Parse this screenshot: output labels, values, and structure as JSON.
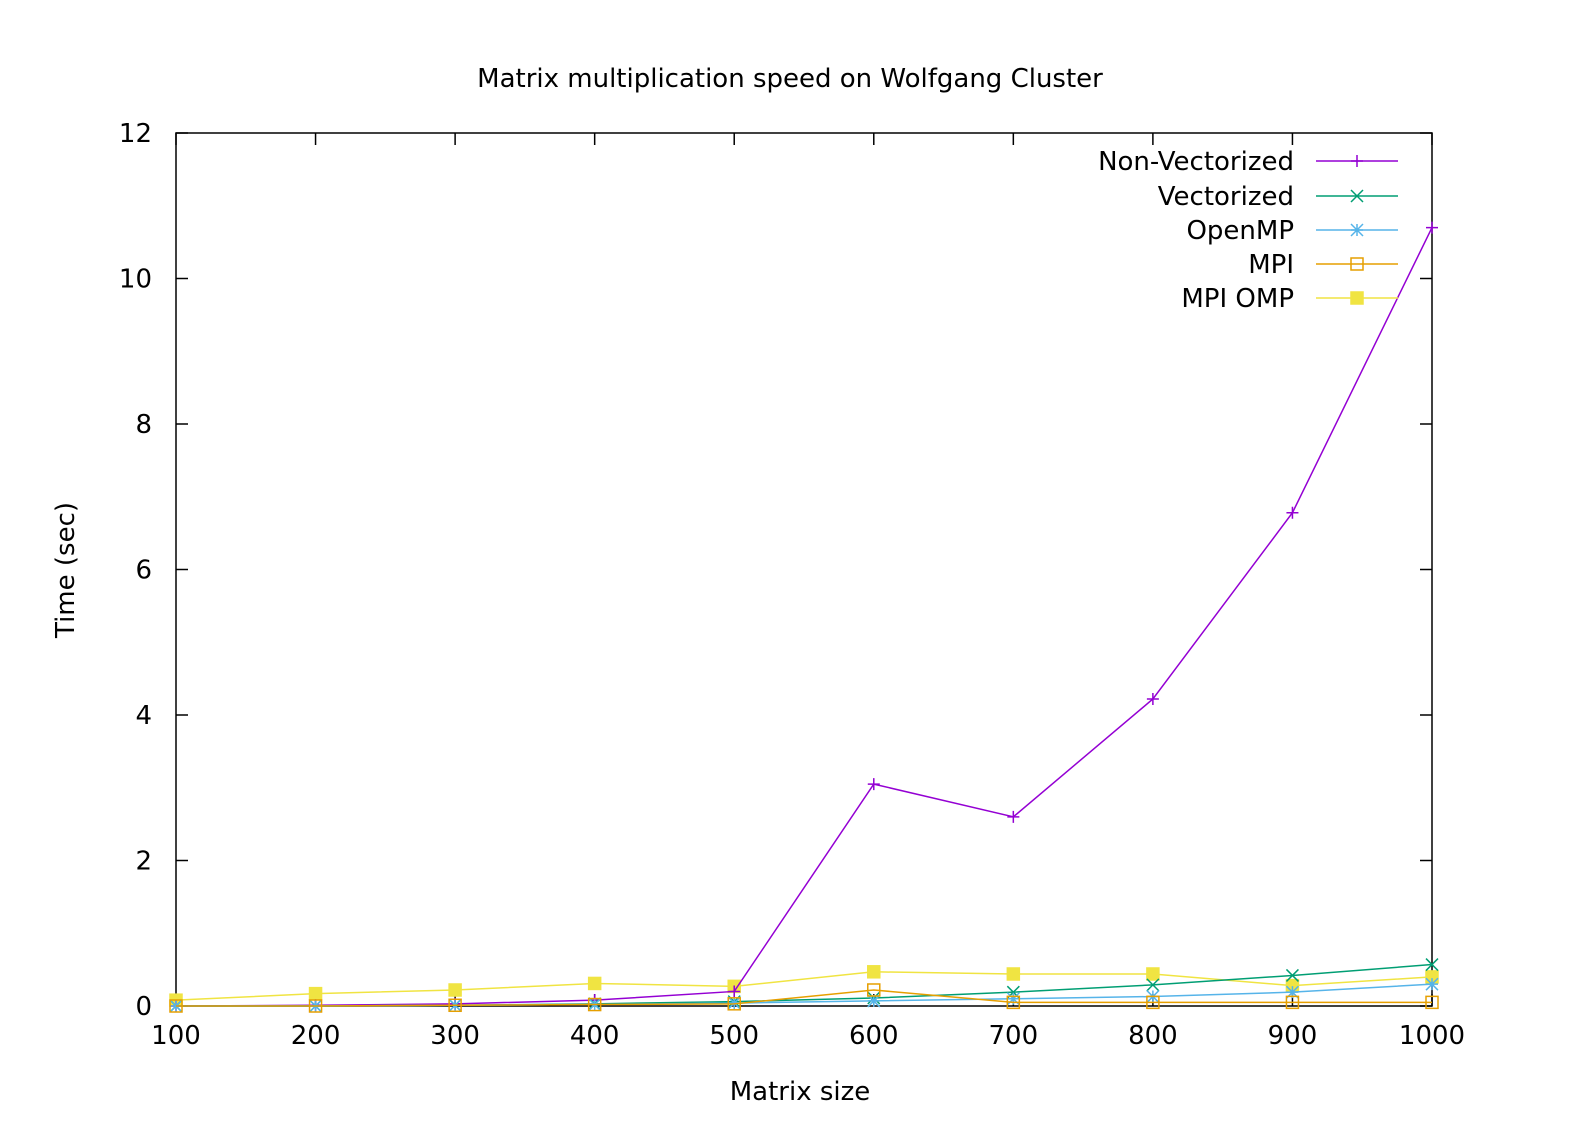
{
  "chart_data": {
    "type": "line",
    "title": "Matrix multiplication speed on Wolfgang Cluster",
    "xlabel": "Matrix size",
    "ylabel": "Time (sec)",
    "xlim": [
      100,
      1000
    ],
    "ylim": [
      0,
      12
    ],
    "x_ticks": [
      "100",
      "200",
      "300",
      "400",
      "500",
      "600",
      "700",
      "800",
      "900",
      "1000"
    ],
    "y_ticks": [
      "0",
      "2",
      "4",
      "6",
      "8",
      "10",
      "12"
    ],
    "grid": false,
    "legend_position": "top-right",
    "x": [
      100,
      200,
      300,
      400,
      500,
      600,
      700,
      800,
      900,
      1000
    ],
    "series": [
      {
        "name": "Non-Vectorized",
        "color": "#9400d3",
        "marker": "plus",
        "values": [
          0.0,
          0.01,
          0.03,
          0.08,
          0.2,
          3.05,
          2.6,
          4.22,
          6.78,
          10.7
        ]
      },
      {
        "name": "Vectorized",
        "color": "#009e73",
        "marker": "cross",
        "values": [
          0.0,
          0.0,
          0.01,
          0.03,
          0.06,
          0.11,
          0.19,
          0.29,
          0.42,
          0.57
        ]
      },
      {
        "name": "OpenMP",
        "color": "#56b4e9",
        "marker": "star",
        "values": [
          0.0,
          0.0,
          0.01,
          0.02,
          0.04,
          0.07,
          0.1,
          0.13,
          0.19,
          0.3
        ]
      },
      {
        "name": "MPI",
        "color": "#e69f00",
        "marker": "open-square",
        "values": [
          0.0,
          0.0,
          0.01,
          0.02,
          0.03,
          0.22,
          0.05,
          0.05,
          0.05,
          0.05
        ]
      },
      {
        "name": "MPI OMP",
        "color": "#f0e442",
        "marker": "filled-square",
        "values": [
          0.08,
          0.17,
          0.22,
          0.31,
          0.27,
          0.47,
          0.44,
          0.44,
          0.28,
          0.4
        ]
      }
    ]
  }
}
